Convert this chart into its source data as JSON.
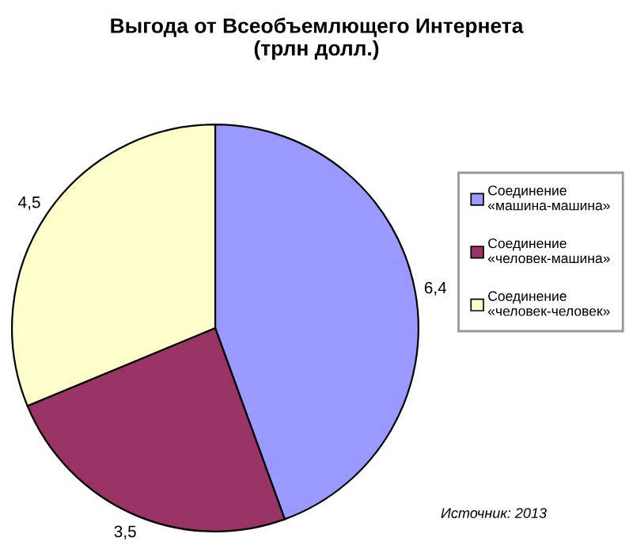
{
  "chart_data": {
    "type": "pie",
    "title": "Выгода от Всеобъемлющего Интернета\n(трлн долл.)",
    "categories": [
      "Соединение\n«машина-машина»",
      "Соединение\n«человек-машина»",
      "Соединение\n«человек-человек»"
    ],
    "values": [
      6.4,
      3.5,
      4.5
    ],
    "value_labels": [
      "6,4",
      "3,5",
      "4,5"
    ],
    "colors": [
      "#9999ff",
      "#993366",
      "#ffffcc"
    ],
    "legend": "right",
    "annotations": [
      "Источник: 2013"
    ]
  }
}
